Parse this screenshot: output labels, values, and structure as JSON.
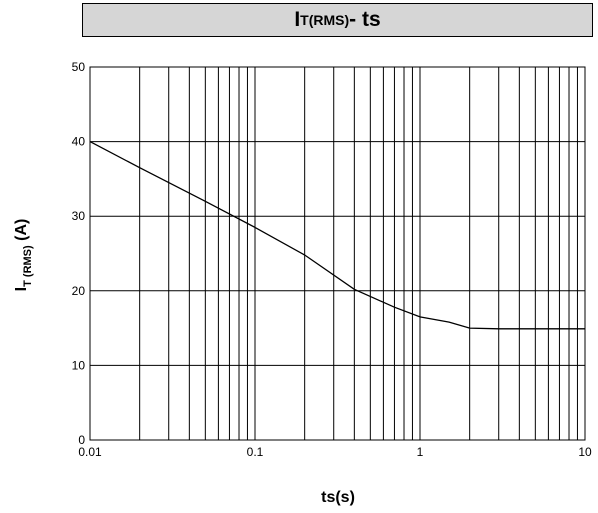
{
  "chart_data": {
    "type": "line",
    "title": {
      "main": "I",
      "sub": "T(RMS)",
      "rest": "- ts"
    },
    "xlabel": "ts(s)",
    "ylabel": {
      "main": "I",
      "sub": "T (RMS)",
      "rest": " (A)"
    },
    "xscale": "log",
    "xlim": [
      0.01,
      10
    ],
    "ylim": [
      0,
      50
    ],
    "xticks": [
      0.01,
      0.1,
      1,
      10
    ],
    "xtick_labels": [
      "0.01",
      "0.1",
      "1",
      "10"
    ],
    "yticks": [
      0,
      10,
      20,
      30,
      40,
      50
    ],
    "ytick_labels": [
      "0",
      "10",
      "20",
      "30",
      "40",
      "50"
    ],
    "grid": true,
    "series": [
      {
        "x": [
          0.01,
          0.02,
          0.05,
          0.1,
          0.2,
          0.4,
          0.7,
          1,
          1.5,
          2,
          3,
          5,
          10
        ],
        "y": [
          40,
          36.5,
          32,
          28.5,
          24.8,
          20.2,
          17.8,
          16.5,
          15.8,
          15.0,
          14.9,
          14.9,
          14.9
        ]
      }
    ],
    "colors": {
      "line": "#000000",
      "grid": "#000000",
      "title_bg": "#d6d6d6"
    }
  }
}
